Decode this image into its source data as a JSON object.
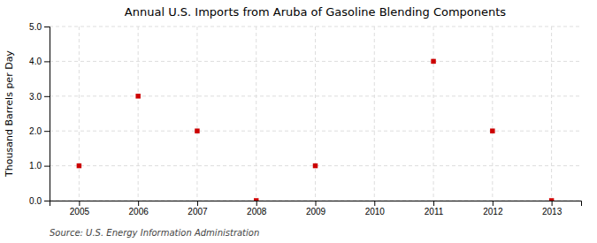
{
  "chart_data": {
    "type": "scatter",
    "title": "Annual U.S. Imports from Aruba of Gasoline Blending Components",
    "ylabel": "Thousand Barrels per Day",
    "source": "Source: U.S. Energy Information Administration",
    "x": [
      2005,
      2006,
      2007,
      2008,
      2009,
      2010,
      2011,
      2012,
      2013
    ],
    "values": [
      1.0,
      3.0,
      2.0,
      0.0,
      1.0,
      null,
      4.0,
      2.0,
      0.0
    ],
    "xlim": [
      2004.5,
      2013.5
    ],
    "ylim": [
      0.0,
      5.0
    ],
    "xticks": [
      2005,
      2006,
      2007,
      2008,
      2009,
      2010,
      2011,
      2012,
      2013
    ],
    "yticks": [
      {
        "value": 0.0,
        "label": "0.0"
      },
      {
        "value": 1.0,
        "label": "1.0"
      },
      {
        "value": 2.0,
        "label": "2.0"
      },
      {
        "value": 3.0,
        "label": "3.0"
      },
      {
        "value": 4.0,
        "label": "4.0"
      },
      {
        "value": 5.0,
        "label": "5.0"
      }
    ],
    "color": "#cc0000",
    "marker": "square",
    "grid": true
  }
}
